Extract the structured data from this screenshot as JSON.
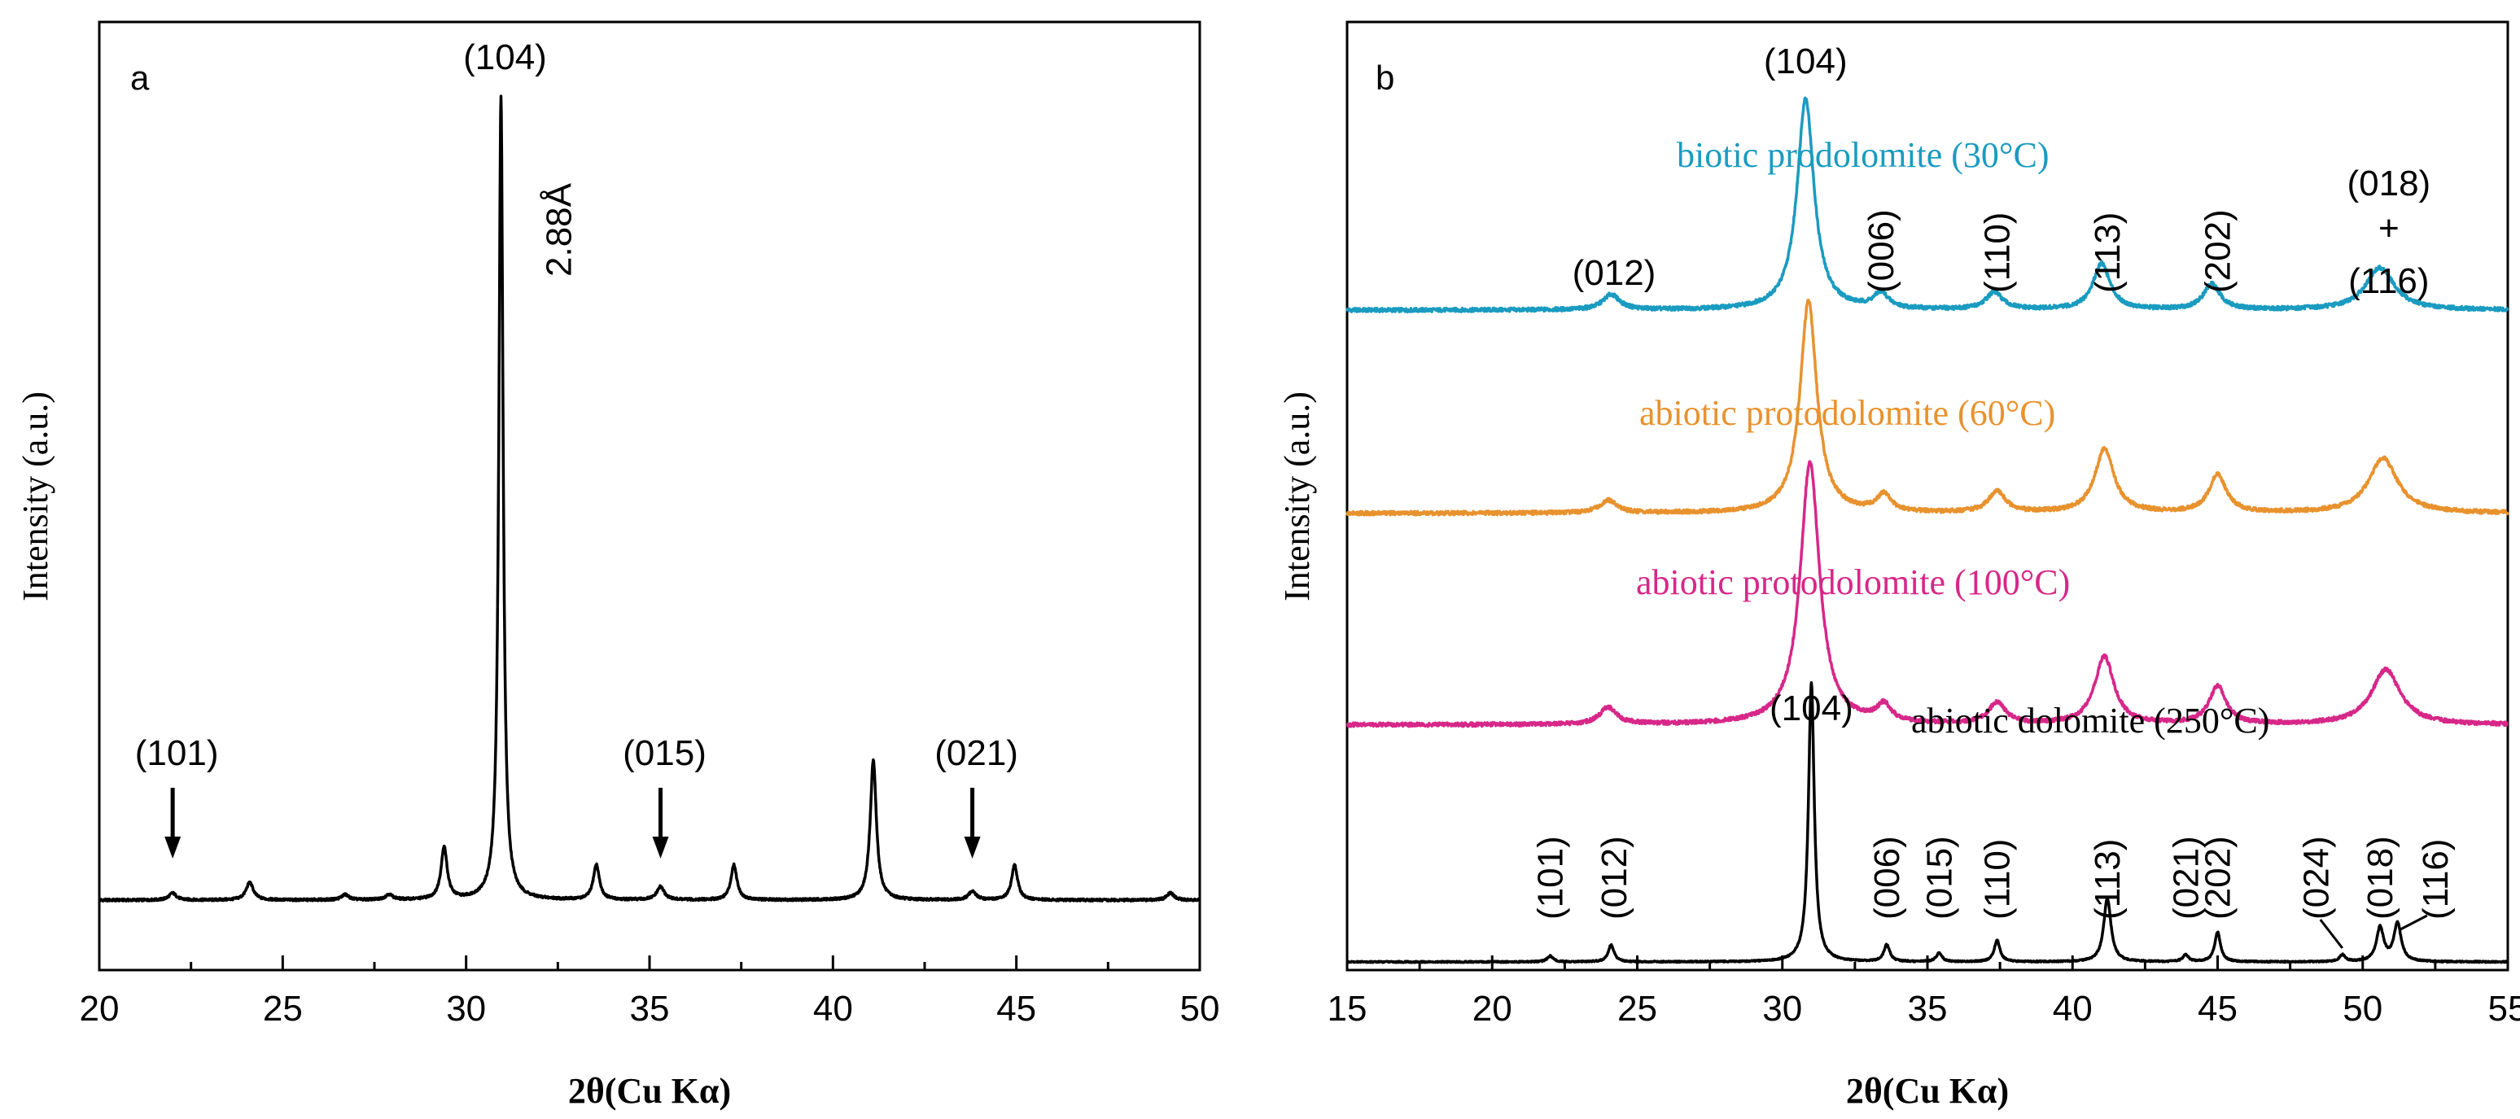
{
  "chart_data": [
    {
      "panel": "a",
      "type": "line",
      "xlabel": "2θ(Cu Kα)",
      "ylabel": "Intensity (a.u.)",
      "xlim": [
        20,
        50
      ],
      "xticks": [
        20,
        25,
        30,
        35,
        40,
        45,
        50
      ],
      "baseline": 8,
      "peaks": [
        {
          "x": 22.0,
          "height": 0.8,
          "width": 0.12
        },
        {
          "x": 24.1,
          "height": 2.0,
          "width": 0.12
        },
        {
          "x": 26.7,
          "height": 0.6,
          "width": 0.12
        },
        {
          "x": 27.9,
          "height": 0.6,
          "width": 0.12
        },
        {
          "x": 29.4,
          "height": 6.0,
          "width": 0.1
        },
        {
          "x": 30.95,
          "height": 92,
          "width": 0.07
        },
        {
          "x": 33.55,
          "height": 4.0,
          "width": 0.1
        },
        {
          "x": 35.3,
          "height": 1.5,
          "width": 0.12
        },
        {
          "x": 37.3,
          "height": 4.0,
          "width": 0.1
        },
        {
          "x": 41.1,
          "height": 16,
          "width": 0.1
        },
        {
          "x": 43.8,
          "height": 1.0,
          "width": 0.12
        },
        {
          "x": 44.95,
          "height": 4.0,
          "width": 0.1
        },
        {
          "x": 49.2,
          "height": 0.8,
          "width": 0.12
        }
      ],
      "annotations": [
        {
          "text": "(104)",
          "x": 30.95,
          "color": "#000000"
        },
        {
          "text": "2.88Å",
          "x": 31.2,
          "color": "#000000",
          "rotated": true
        },
        {
          "text": "(101)",
          "x": 22.0,
          "color": "#d42027",
          "arrow": true
        },
        {
          "text": "(015)",
          "x": 35.3,
          "color": "#d42027",
          "arrow": true
        },
        {
          "text": "(021)",
          "x": 43.8,
          "color": "#d42027",
          "arrow": true
        }
      ],
      "label": "a"
    },
    {
      "panel": "b",
      "type": "line",
      "xlabel": "2θ(Cu Kα)",
      "ylabel": "Intensity (a.u.)",
      "xlim": [
        15,
        55
      ],
      "xticks": [
        15,
        20,
        25,
        30,
        35,
        40,
        45,
        50,
        55
      ],
      "label": "b",
      "series": [
        {
          "name": "biotic  prodolomite (30°C)",
          "color": "#1a9bc0",
          "offset": 77,
          "peaks": [
            {
              "x": 24.1,
              "height": 1.8,
              "width": 0.35
            },
            {
              "x": 30.8,
              "height": 25,
              "width": 0.35
            },
            {
              "x": 33.4,
              "height": 1.8,
              "width": 0.3
            },
            {
              "x": 37.3,
              "height": 2.0,
              "width": 0.35
            },
            {
              "x": 41.0,
              "height": 5.5,
              "width": 0.35
            },
            {
              "x": 44.8,
              "height": 3.0,
              "width": 0.35
            },
            {
              "x": 50.6,
              "height": 5.0,
              "width": 0.6
            }
          ]
        },
        {
          "name": "abiotic protodolomite (60°C)",
          "color": "#e8922e",
          "offset": 53,
          "peaks": [
            {
              "x": 24.0,
              "height": 1.5,
              "width": 0.35
            },
            {
              "x": 30.9,
              "height": 25,
              "width": 0.35
            },
            {
              "x": 33.5,
              "height": 2.0,
              "width": 0.3
            },
            {
              "x": 37.4,
              "height": 2.5,
              "width": 0.35
            },
            {
              "x": 41.1,
              "height": 7.5,
              "width": 0.4
            },
            {
              "x": 45.0,
              "height": 4.5,
              "width": 0.35
            },
            {
              "x": 50.7,
              "height": 6.5,
              "width": 0.6
            }
          ]
        },
        {
          "name": "abiotic protodolomite (100°C)",
          "color": "#d72789",
          "offset": 28,
          "peaks": [
            {
              "x": 24.0,
              "height": 2.0,
              "width": 0.35
            },
            {
              "x": 30.95,
              "height": 31,
              "width": 0.4
            },
            {
              "x": 33.5,
              "height": 2.0,
              "width": 0.3
            },
            {
              "x": 37.4,
              "height": 2.5,
              "width": 0.35
            },
            {
              "x": 41.1,
              "height": 8.0,
              "width": 0.4
            },
            {
              "x": 45.0,
              "height": 4.5,
              "width": 0.35
            },
            {
              "x": 50.8,
              "height": 6.5,
              "width": 0.6
            }
          ]
        },
        {
          "name": "abiotic dolomite (250°C)",
          "color": "#000000",
          "offset": 0,
          "peaks": [
            {
              "x": 22.0,
              "height": 0.7,
              "width": 0.12
            },
            {
              "x": 24.1,
              "height": 2.0,
              "width": 0.12
            },
            {
              "x": 31.0,
              "height": 33,
              "width": 0.12
            },
            {
              "x": 33.6,
              "height": 2.0,
              "width": 0.12
            },
            {
              "x": 35.4,
              "height": 1.0,
              "width": 0.12
            },
            {
              "x": 37.4,
              "height": 2.5,
              "width": 0.12
            },
            {
              "x": 41.2,
              "height": 7.5,
              "width": 0.15
            },
            {
              "x": 43.9,
              "height": 0.8,
              "width": 0.12
            },
            {
              "x": 45.0,
              "height": 3.5,
              "width": 0.12
            },
            {
              "x": 49.3,
              "height": 0.8,
              "width": 0.12
            },
            {
              "x": 50.6,
              "height": 4.0,
              "width": 0.15
            },
            {
              "x": 51.2,
              "height": 4.5,
              "width": 0.15
            }
          ]
        }
      ],
      "annotations_top": [
        {
          "text": "(104)",
          "x": 30.8
        },
        {
          "text": "(012)",
          "x": 24.2
        },
        {
          "text": "(006)",
          "x": 33.4,
          "rotated": true
        },
        {
          "text": "(110)",
          "x": 37.4,
          "rotated": true
        },
        {
          "text": "(113)",
          "x": 41.2,
          "rotated": true
        },
        {
          "text": "(202)",
          "x": 45.0,
          "rotated": true
        },
        {
          "text": "(018)",
          "x": 50.9
        },
        {
          "text": "+",
          "x": 50.9
        },
        {
          "text": "(116)",
          "x": 50.9
        }
      ],
      "annotations_bottom": [
        {
          "text": "(104)",
          "x": 31.0,
          "color": "#000000"
        },
        {
          "text": "(101)",
          "x": 22.0,
          "color": "#d42027"
        },
        {
          "text": "(012)",
          "x": 24.2,
          "color": "#000000"
        },
        {
          "text": "(006)",
          "x": 33.6,
          "color": "#000000"
        },
        {
          "text": "(015)",
          "x": 35.4,
          "color": "#d42027"
        },
        {
          "text": "(110)",
          "x": 37.4,
          "color": "#000000"
        },
        {
          "text": "(113)",
          "x": 41.2,
          "color": "#000000"
        },
        {
          "text": "(021)",
          "x": 43.9,
          "color": "#d42027"
        },
        {
          "text": "(202)",
          "x": 45.0,
          "color": "#000000"
        },
        {
          "text": "(024)",
          "x": 48.4,
          "color": "#000000"
        },
        {
          "text": "(018)",
          "x": 50.6,
          "color": "#000000"
        },
        {
          "text": "(116)",
          "x": 52.5,
          "color": "#000000"
        }
      ]
    }
  ]
}
